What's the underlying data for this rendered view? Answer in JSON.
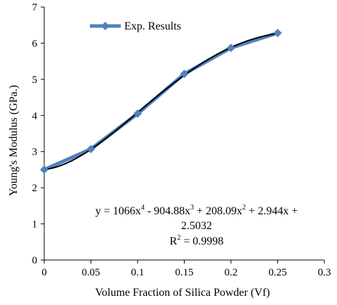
{
  "chart_data": {
    "type": "scatter",
    "title": "",
    "xlabel": "Volume Fraction of Silica Powder (Vf)",
    "ylabel": "Young's Modulus (GPa.)",
    "xlim": [
      0,
      0.3
    ],
    "ylim": [
      0,
      7
    ],
    "x_ticks": [
      "0",
      "0.05",
      "0.1",
      "0.15",
      "0.2",
      "0.25",
      "0.3"
    ],
    "y_ticks": [
      "0",
      "1",
      "2",
      "3",
      "4",
      "5",
      "6",
      "7"
    ],
    "grid": false,
    "legend_position": "top-left",
    "series": [
      {
        "name": "Exp. Results",
        "marker": "diamond",
        "color": "#4f81bd",
        "x": [
          0,
          0.05,
          0.1,
          0.15,
          0.2,
          0.25
        ],
        "y": [
          2.5,
          3.07,
          4.05,
          5.15,
          5.87,
          6.28
        ]
      }
    ],
    "trendline": {
      "type": "polynomial",
      "color": "#000000",
      "coefficients": [
        1066,
        -904.88,
        208.09,
        2.944,
        2.5032
      ],
      "equation_parts": {
        "lead": "y = 1066x",
        "e4": "4",
        "t3": " - 904.88x",
        "e3": "3",
        "t2": " + 208.09x",
        "e2": "2",
        "t1": " + 2.944x +",
        "line2": "2.5032",
        "r2_lead": "R",
        "r2_sup": "2",
        "r2_rest": " = 0.9998"
      }
    }
  }
}
